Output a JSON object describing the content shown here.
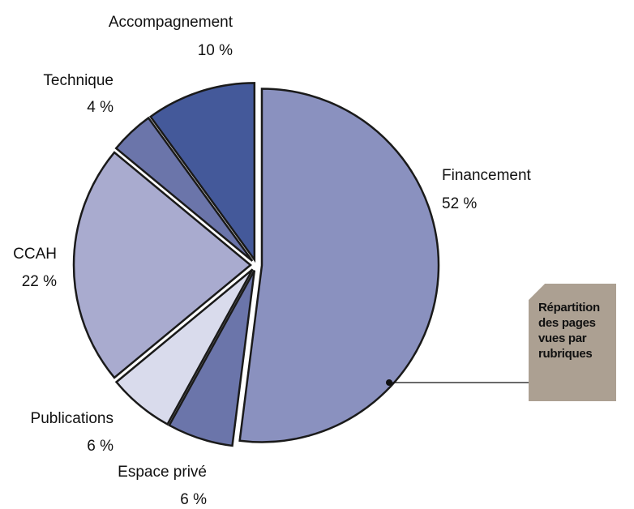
{
  "chart_data": {
    "type": "pie",
    "categories": [
      "Financement",
      "Espace privé",
      "Publications",
      "CCAH",
      "Technique",
      "Accompagnement"
    ],
    "values": [
      52,
      6,
      6,
      22,
      4,
      10
    ],
    "value_labels": [
      "52 %",
      "6 %",
      "6 %",
      "22 %",
      "4 %",
      "10 %"
    ],
    "colors": [
      "#8a91bf",
      "#6b75aa",
      "#d9dbec",
      "#a9abcf",
      "#6b75aa",
      "#44599a"
    ],
    "annotation": "Répartition des pages vues par rubriques"
  }
}
